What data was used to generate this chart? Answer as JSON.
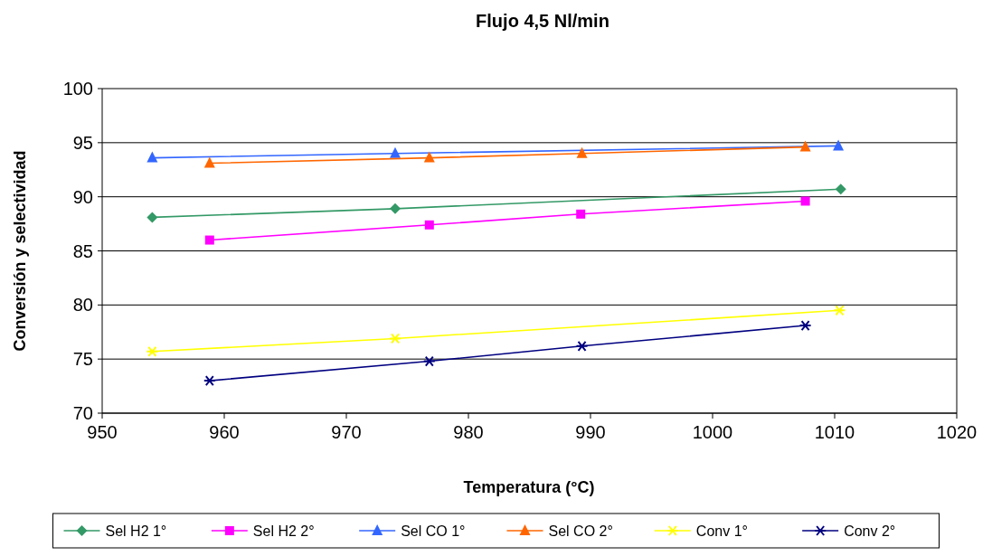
{
  "chart_data": {
    "type": "line",
    "title": "Flujo 4,5 Nl/min",
    "xlabel": "Temperatura (°C)",
    "ylabel": "Conversión y selectividad",
    "xlim": [
      950,
      1020
    ],
    "xticks": [
      950,
      960,
      970,
      980,
      990,
      1000,
      1010,
      1020
    ],
    "ylim": [
      70,
      100
    ],
    "yticks": [
      70,
      75,
      80,
      85,
      90,
      95,
      100
    ],
    "grid": "y",
    "legend": "bottom",
    "series": [
      {
        "name": "Sel H2 1°",
        "color": "#339966",
        "marker": "diamond",
        "x": [
          954.1,
          974,
          1010.5
        ],
        "values": [
          88.1,
          88.9,
          90.7
        ]
      },
      {
        "name": "Sel H2 2°",
        "color": "#ff00ff",
        "marker": "square",
        "x": [
          958.8,
          976.8,
          989.2,
          1007.6
        ],
        "values": [
          86,
          87.4,
          88.4,
          89.6
        ]
      },
      {
        "name": "Sel CO 1°",
        "color": "#3366ff",
        "marker": "triangle",
        "x": [
          954.1,
          974,
          1010.3
        ],
        "values": [
          93.6,
          94,
          94.7
        ]
      },
      {
        "name": "Sel CO 2°",
        "color": "#ff6600",
        "marker": "triangle",
        "x": [
          958.8,
          976.8,
          989.3,
          1007.6
        ],
        "values": [
          93.1,
          93.6,
          94,
          94.6
        ]
      },
      {
        "name": "Conv 1°",
        "color": "#ffff00",
        "marker": "cross",
        "x": [
          954.1,
          974,
          1010.4
        ],
        "values": [
          75.7,
          76.9,
          79.5
        ]
      },
      {
        "name": "Conv 2°",
        "color": "#000080",
        "marker": "cross",
        "x": [
          958.8,
          976.8,
          989.3,
          1007.6
        ],
        "values": [
          73,
          74.8,
          76.2,
          78.1
        ]
      }
    ]
  }
}
